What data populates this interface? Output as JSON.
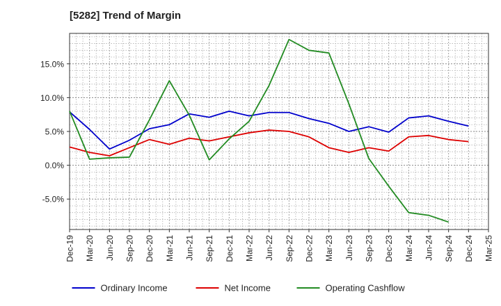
{
  "chart_data": {
    "type": "line",
    "title": "[5282]  Trend of Margin",
    "xlabel": "",
    "ylabel": "",
    "x": [
      "Dec-19",
      "Mar-20",
      "Jun-20",
      "Sep-20",
      "Dec-20",
      "Mar-21",
      "Jun-21",
      "Sep-21",
      "Dec-21",
      "Mar-22",
      "Jun-22",
      "Sep-22",
      "Dec-22",
      "Mar-23",
      "Jun-23",
      "Sep-23",
      "Dec-23",
      "Mar-24",
      "Jun-24",
      "Sep-24",
      "Dec-24",
      "Mar-25"
    ],
    "ylim": [
      -9.5,
      19.5
    ],
    "yticks": [
      -5,
      0,
      5,
      10,
      15
    ],
    "ytick_labels": [
      "-5.0%",
      "0.0%",
      "5.0%",
      "10.0%",
      "15.0%"
    ],
    "grid": true,
    "legend_position": "bottom",
    "series": [
      {
        "name": "Ordinary Income",
        "color": "#0000cc",
        "values": [
          7.9,
          5.3,
          2.4,
          3.7,
          5.4,
          6.0,
          7.6,
          7.1,
          8.0,
          7.3,
          7.8,
          7.8,
          6.9,
          6.2,
          5.0,
          5.7,
          4.9,
          7.0,
          7.3,
          6.5,
          5.8,
          null
        ]
      },
      {
        "name": "Net Income",
        "color": "#dd0000",
        "values": [
          2.7,
          1.9,
          1.4,
          2.6,
          3.8,
          3.1,
          4.0,
          3.6,
          4.2,
          4.8,
          5.2,
          5.0,
          4.2,
          2.6,
          1.9,
          2.6,
          2.1,
          4.2,
          4.4,
          3.8,
          3.5,
          null
        ]
      },
      {
        "name": "Operating Cashflow",
        "color": "#228b22",
        "values": [
          8.0,
          0.9,
          1.1,
          1.2,
          6.7,
          12.5,
          7.4,
          0.8,
          3.9,
          6.5,
          11.8,
          18.6,
          17.0,
          16.6,
          9.1,
          1.0,
          -3.1,
          -7.0,
          -7.4,
          -8.4,
          null,
          null
        ]
      }
    ]
  }
}
